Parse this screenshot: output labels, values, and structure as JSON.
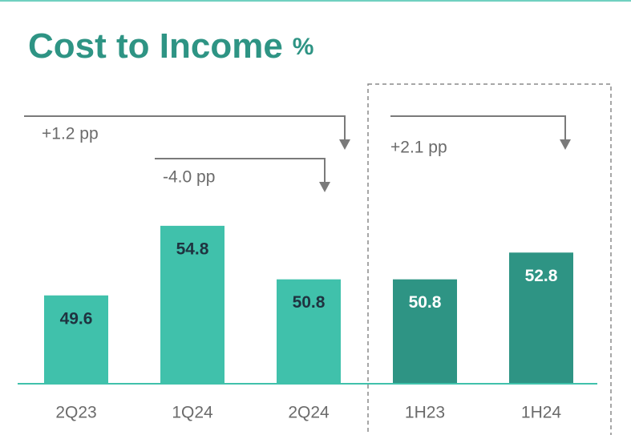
{
  "chart_data": {
    "type": "bar",
    "title": "Cost to Income",
    "title_unit": "%",
    "categories": [
      "2Q23",
      "1Q24",
      "2Q24",
      "1H23",
      "1H24"
    ],
    "values": [
      49.6,
      54.8,
      50.8,
      50.8,
      52.8
    ],
    "colors": [
      "#40c1ab",
      "#40c1ab",
      "#40c1ab",
      "#2e9484",
      "#2e9484"
    ],
    "label_colors": [
      "#1f3340",
      "#1f3340",
      "#1f3340",
      "#ffffff",
      "#ffffff"
    ],
    "ylim": [
      43,
      60
    ],
    "annotations": [
      "+1.2 pp",
      "-4.0 pp",
      "+2.1 pp"
    ]
  }
}
